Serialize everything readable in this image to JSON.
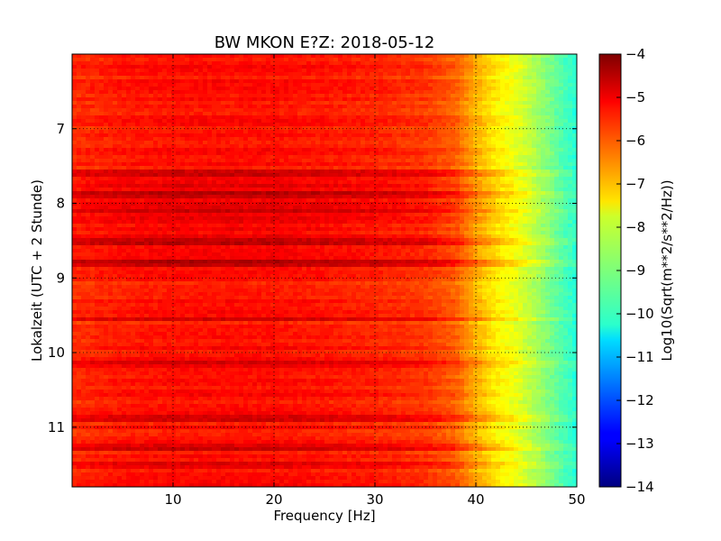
{
  "chart_data": {
    "type": "heatmap",
    "title": "BW MKON E?Z: 2018-05-12",
    "xlabel": "Frequency [Hz]",
    "ylabel": "Lokalzeit (UTC + 2 Stunde)",
    "xlim": [
      0,
      50
    ],
    "ylim": [
      6.0,
      11.8
    ],
    "y_inverted": true,
    "x_ticks": [
      {
        "value": 10,
        "label": "10"
      },
      {
        "value": 20,
        "label": "20"
      },
      {
        "value": 30,
        "label": "30"
      },
      {
        "value": 40,
        "label": "40"
      },
      {
        "value": 50,
        "label": "50"
      }
    ],
    "y_ticks": [
      {
        "value": 7,
        "label": "7"
      },
      {
        "value": 8,
        "label": "8"
      },
      {
        "value": 9,
        "label": "9"
      },
      {
        "value": 10,
        "label": "10"
      },
      {
        "value": 11,
        "label": "11"
      }
    ],
    "grid": true,
    "colormap": "jet",
    "colorbar": {
      "label": "Log10(Sqrt(m**2/s**2/Hz))",
      "range": [
        -14,
        -4
      ],
      "ticks": [
        {
          "value": -4,
          "label": "−4"
        },
        {
          "value": -5,
          "label": "−5"
        },
        {
          "value": -6,
          "label": "−6"
        },
        {
          "value": -7,
          "label": "−7"
        },
        {
          "value": -8,
          "label": "−8"
        },
        {
          "value": -9,
          "label": "−9"
        },
        {
          "value": -10,
          "label": "−10"
        },
        {
          "value": -11,
          "label": "−11"
        },
        {
          "value": -12,
          "label": "−12"
        },
        {
          "value": -13,
          "label": "−13"
        },
        {
          "value": -14,
          "label": "−14"
        }
      ]
    },
    "spectral_profile": {
      "frequency_hz": [
        0,
        5,
        10,
        15,
        20,
        25,
        30,
        35,
        38,
        40,
        42,
        44,
        46,
        48,
        50
      ],
      "typical_level": [
        -5.7,
        -5.5,
        -5.4,
        -5.4,
        -5.4,
        -5.5,
        -5.6,
        -5.8,
        -6.2,
        -7.0,
        -7.6,
        -8.0,
        -8.6,
        -9.3,
        -9.9
      ]
    },
    "strong_bands_hours": [
      7.6,
      7.9,
      8.1,
      8.5,
      8.8,
      9.55,
      10.15,
      10.87,
      11.25,
      11.5
    ]
  }
}
